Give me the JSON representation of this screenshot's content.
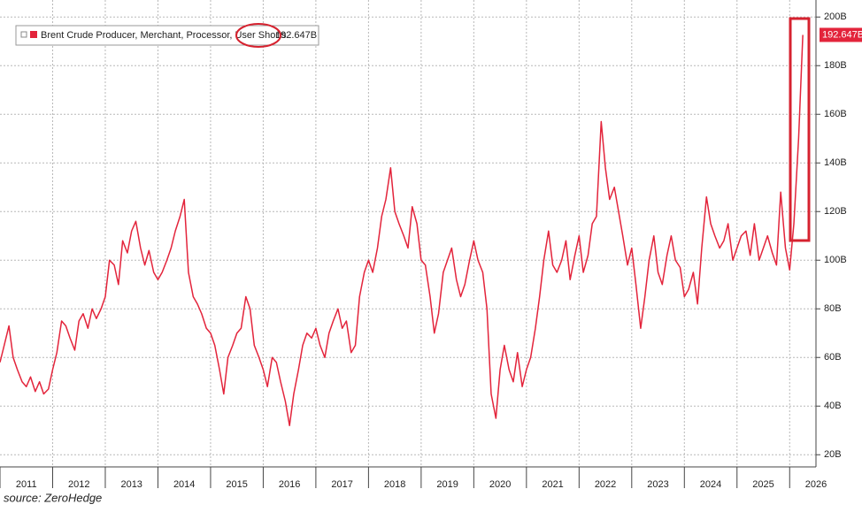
{
  "chart_data": {
    "type": "line",
    "x": [
      2011.0,
      2011.08,
      2011.17,
      2011.25,
      2011.33,
      2011.42,
      2011.5,
      2011.58,
      2011.67,
      2011.75,
      2011.83,
      2011.92,
      2012.0,
      2012.08,
      2012.17,
      2012.25,
      2012.33,
      2012.42,
      2012.5,
      2012.58,
      2012.67,
      2012.75,
      2012.83,
      2012.92,
      2013.0,
      2013.08,
      2013.17,
      2013.25,
      2013.33,
      2013.42,
      2013.5,
      2013.58,
      2013.67,
      2013.75,
      2013.83,
      2013.92,
      2014.0,
      2014.08,
      2014.17,
      2014.25,
      2014.33,
      2014.42,
      2014.5,
      2014.58,
      2014.67,
      2014.75,
      2014.83,
      2014.92,
      2015.0,
      2015.08,
      2015.17,
      2015.25,
      2015.33,
      2015.42,
      2015.5,
      2015.58,
      2015.67,
      2015.75,
      2015.83,
      2015.92,
      2016.0,
      2016.08,
      2016.17,
      2016.25,
      2016.33,
      2016.42,
      2016.5,
      2016.58,
      2016.67,
      2016.75,
      2016.83,
      2016.92,
      2017.0,
      2017.08,
      2017.17,
      2017.25,
      2017.33,
      2017.42,
      2017.5,
      2017.58,
      2017.67,
      2017.75,
      2017.83,
      2017.92,
      2018.0,
      2018.08,
      2018.17,
      2018.25,
      2018.33,
      2018.42,
      2018.5,
      2018.58,
      2018.67,
      2018.75,
      2018.83,
      2018.92,
      2019.0,
      2019.08,
      2019.17,
      2019.25,
      2019.33,
      2019.42,
      2019.5,
      2019.58,
      2019.67,
      2019.75,
      2019.83,
      2019.92,
      2020.0,
      2020.08,
      2020.17,
      2020.25,
      2020.33,
      2020.42,
      2020.5,
      2020.58,
      2020.67,
      2020.75,
      2020.83,
      2020.92,
      2021.0,
      2021.08,
      2021.17,
      2021.25,
      2021.33,
      2021.42,
      2021.5,
      2021.58,
      2021.67,
      2021.75,
      2021.83,
      2021.92,
      2022.0,
      2022.08,
      2022.17,
      2022.25,
      2022.33,
      2022.42,
      2022.5,
      2022.58,
      2022.67,
      2022.75,
      2022.83,
      2022.92,
      2023.0,
      2023.08,
      2023.17,
      2023.25,
      2023.33,
      2023.42,
      2023.5,
      2023.58,
      2023.67,
      2023.75,
      2023.83,
      2023.92,
      2024.0,
      2024.08,
      2024.17,
      2024.25,
      2024.33,
      2024.42,
      2024.5,
      2024.58,
      2024.67,
      2024.75,
      2024.83,
      2024.92,
      2025.0,
      2025.08,
      2025.17,
      2025.25,
      2025.33,
      2025.42,
      2025.5,
      2025.58,
      2025.67,
      2025.75,
      2025.83,
      2025.92,
      2026.0,
      2026.08,
      2026.17,
      2026.25
    ],
    "series": [
      {
        "name": "Brent Crude Producer, Merchant, Processor, User Shorts",
        "color": "#e3243b",
        "values": [
          58,
          65,
          73,
          60,
          55,
          50,
          48,
          52,
          46,
          50,
          45,
          47,
          55,
          62,
          75,
          73,
          68,
          63,
          75,
          78,
          72,
          80,
          76,
          80,
          85,
          100,
          98,
          90,
          108,
          103,
          112,
          116,
          105,
          98,
          104,
          95,
          92,
          95,
          100,
          105,
          112,
          118,
          125,
          95,
          85,
          82,
          78,
          72,
          70,
          65,
          55,
          45,
          60,
          65,
          70,
          72,
          85,
          80,
          65,
          60,
          55,
          48,
          60,
          58,
          50,
          42,
          32,
          45,
          55,
          65,
          70,
          68,
          72,
          65,
          60,
          70,
          75,
          80,
          72,
          75,
          62,
          65,
          85,
          95,
          100,
          95,
          105,
          118,
          125,
          138,
          120,
          115,
          110,
          105,
          122,
          115,
          100,
          98,
          85,
          70,
          78,
          95,
          100,
          105,
          92,
          85,
          90,
          100,
          108,
          100,
          95,
          80,
          45,
          35,
          55,
          65,
          55,
          50,
          62,
          48,
          55,
          60,
          72,
          85,
          100,
          112,
          98,
          95,
          100,
          108,
          92,
          102,
          110,
          95,
          102,
          115,
          118,
          157,
          138,
          125,
          130,
          120,
          110,
          98,
          105,
          90,
          72,
          85,
          100,
          110,
          95,
          90,
          102,
          110,
          100,
          97,
          85,
          88,
          95,
          82,
          105,
          126,
          115,
          110,
          105,
          108,
          115,
          100,
          105,
          110,
          112,
          102,
          115,
          100,
          105,
          110,
          103,
          98,
          128,
          105,
          96,
          115,
          150,
          192.647
        ],
        "last_value": {
          "value": 192.647,
          "label": "192.647B"
        }
      }
    ],
    "xlim": [
      2011,
      2026.5
    ],
    "xticks": [
      2011,
      2012,
      2013,
      2014,
      2015,
      2016,
      2017,
      2018,
      2019,
      2020,
      2021,
      2022,
      2023,
      2024,
      2025,
      2026
    ],
    "ylim": [
      15,
      207
    ],
    "yticks": [
      {
        "value": 20,
        "label": "20B"
      },
      {
        "value": 40,
        "label": "40B"
      },
      {
        "value": 60,
        "label": "60B"
      },
      {
        "value": 80,
        "label": "80B"
      },
      {
        "value": 100,
        "label": "100B"
      },
      {
        "value": 120,
        "label": "120B"
      },
      {
        "value": 140,
        "label": "140B"
      },
      {
        "value": 160,
        "label": "160B"
      },
      {
        "value": 180,
        "label": "180B"
      },
      {
        "value": 200,
        "label": "200B"
      }
    ],
    "grid": true,
    "source": "source: ZeroHedge"
  }
}
